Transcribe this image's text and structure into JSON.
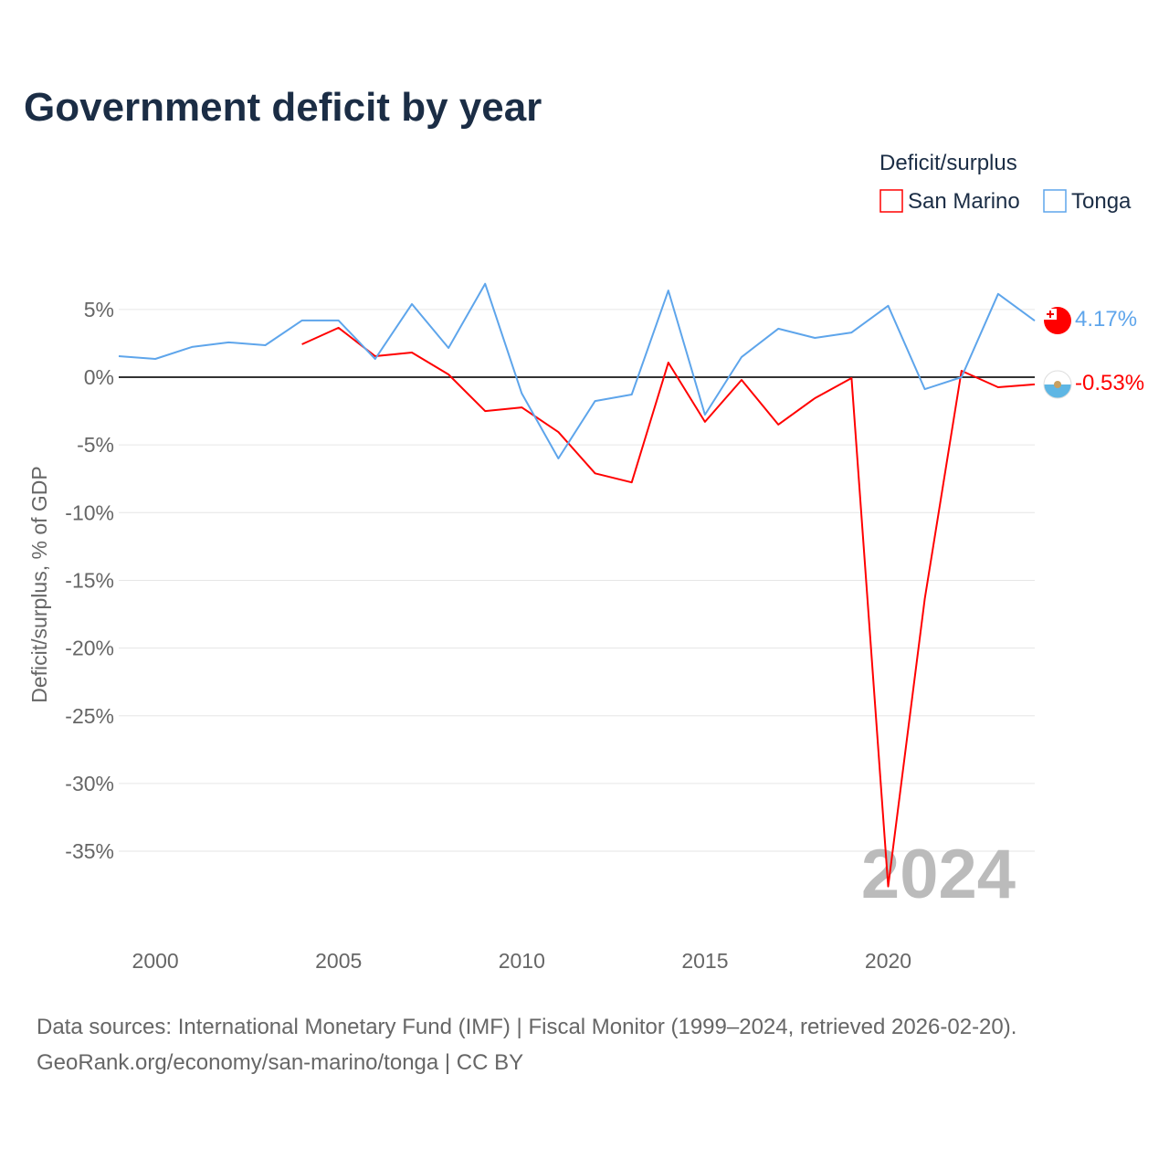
{
  "chart_data": {
    "type": "line",
    "title": "Government deficit by year",
    "xlabel": "",
    "ylabel": "Deficit/surplus, % of GDP",
    "legend_title": "Deficit/surplus",
    "legend_position": "top-right",
    "year_label": "2024",
    "x": [
      1999,
      2000,
      2001,
      2002,
      2003,
      2004,
      2005,
      2006,
      2007,
      2008,
      2009,
      2010,
      2011,
      2012,
      2013,
      2014,
      2015,
      2016,
      2017,
      2018,
      2019,
      2020,
      2021,
      2022,
      2023,
      2024
    ],
    "x_ticks": [
      2000,
      2005,
      2010,
      2015,
      2020
    ],
    "y_ticks": [
      5,
      0,
      -5,
      -10,
      -15,
      -20,
      -25,
      -30,
      -35
    ],
    "y_tick_labels": [
      "5%",
      "0%",
      "-5%",
      "-10%",
      "-15%",
      "-20%",
      "-25%",
      "-30%",
      "-35%"
    ],
    "x_tick_labels": [
      "2000",
      "2005",
      "2010",
      "2015",
      "2020"
    ],
    "xlim": [
      1999,
      2024
    ],
    "ylim": [
      -41,
      9
    ],
    "series": [
      {
        "name": "San Marino",
        "color": "#ff0000",
        "end_label": "-0.53%",
        "values": [
          null,
          null,
          null,
          null,
          null,
          2.43,
          3.65,
          1.55,
          1.82,
          0.2,
          -2.5,
          -2.23,
          -4.05,
          -7.1,
          -7.77,
          1.08,
          -3.3,
          -0.2,
          -3.5,
          -1.55,
          -0.07,
          -37.6,
          -16.35,
          0.47,
          -0.74,
          -0.53
        ]
      },
      {
        "name": "Tonga",
        "color": "#5ea5eb",
        "end_label": "4.17%",
        "values": [
          1.55,
          1.35,
          2.23,
          2.57,
          2.36,
          4.19,
          4.19,
          1.35,
          5.4,
          2.16,
          6.9,
          -1.2,
          -6.0,
          -1.76,
          -1.28,
          6.4,
          -2.77,
          1.49,
          3.58,
          2.9,
          3.3,
          5.27,
          -0.88,
          0.0,
          6.15,
          4.17
        ]
      }
    ]
  },
  "footer": {
    "line1": "Data sources: International Monetary Fund (IMF) | Fiscal Monitor (1999–2024, retrieved 2026-02-20).",
    "line2": "GeoRank.org/economy/san-marino/tonga | CC BY"
  }
}
